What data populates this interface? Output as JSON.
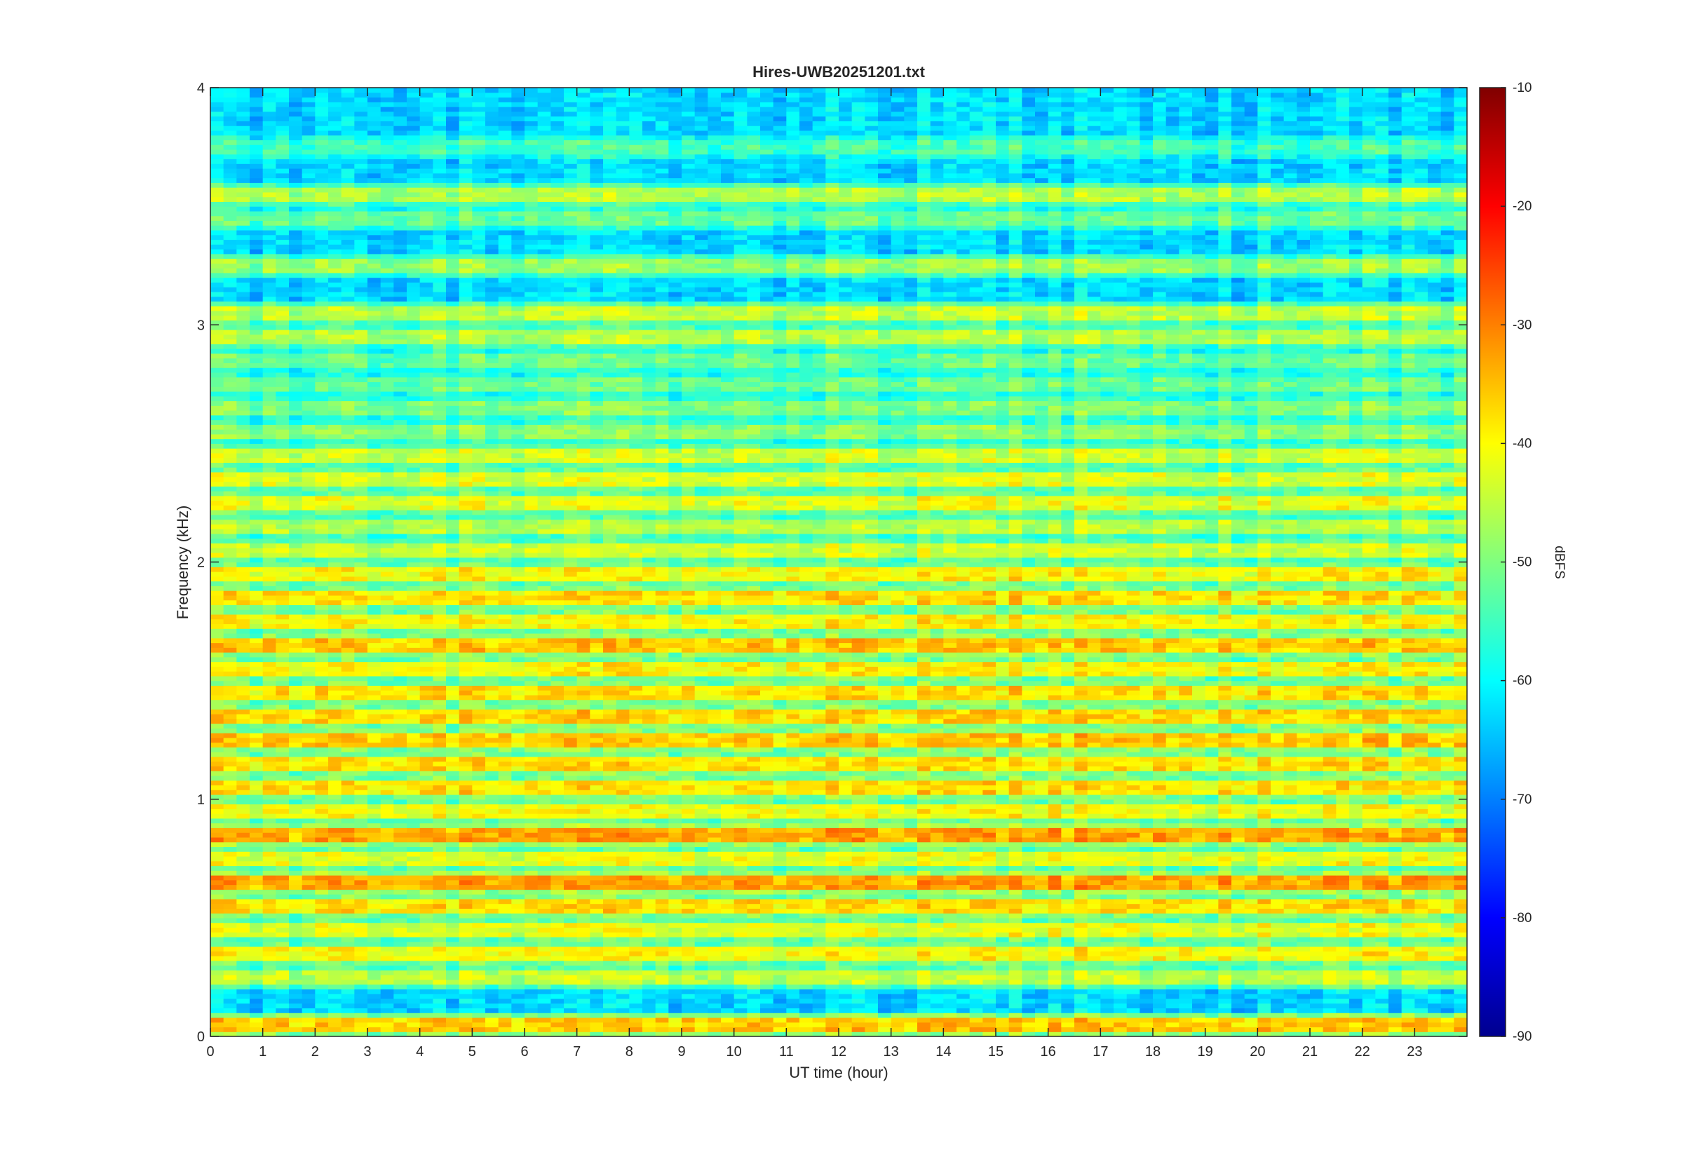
{
  "chart_data": {
    "type": "heatmap",
    "title": "Hires-UWB20251201.txt",
    "xlabel": "UT time (hour)",
    "ylabel": "Frequency (kHz)",
    "xlim": [
      0,
      24
    ],
    "ylim": [
      0,
      4
    ],
    "x_ticks": [
      0,
      1,
      2,
      3,
      4,
      5,
      6,
      7,
      8,
      9,
      10,
      11,
      12,
      13,
      14,
      15,
      16,
      17,
      18,
      19,
      20,
      21,
      22,
      23
    ],
    "y_ticks": [
      0,
      1,
      2,
      3,
      4
    ],
    "colorbar": {
      "label": "dBFS",
      "range": [
        -90,
        -10
      ],
      "ticks": [
        -90,
        -80,
        -70,
        -60,
        -50,
        -40,
        -30,
        -20,
        -10
      ],
      "colormap": "jet"
    },
    "band_profile": {
      "freq_khz": [
        0.05,
        0.25,
        0.35,
        0.45,
        0.55,
        0.65,
        0.75,
        0.85,
        0.95,
        1.05,
        1.15,
        1.25,
        1.35,
        1.45,
        1.55,
        1.65,
        1.75,
        1.85,
        1.95,
        2.05,
        2.15,
        2.25,
        2.35,
        2.45,
        2.55,
        2.65,
        2.75,
        2.85,
        2.95,
        3.05,
        3.25,
        3.45,
        3.55,
        3.75
      ],
      "level_dbfs": [
        -36,
        -45,
        -40,
        -42,
        -38,
        -33,
        -42,
        -33,
        -41,
        -38,
        -38,
        -36,
        -37,
        -38,
        -40,
        -36,
        -40,
        -38,
        -40,
        -44,
        -46,
        -42,
        -43,
        -44,
        -49,
        -50,
        -52,
        -52,
        -46,
        -45,
        -48,
        -52,
        -46,
        -55
      ]
    },
    "background_dbfs": -63
  }
}
